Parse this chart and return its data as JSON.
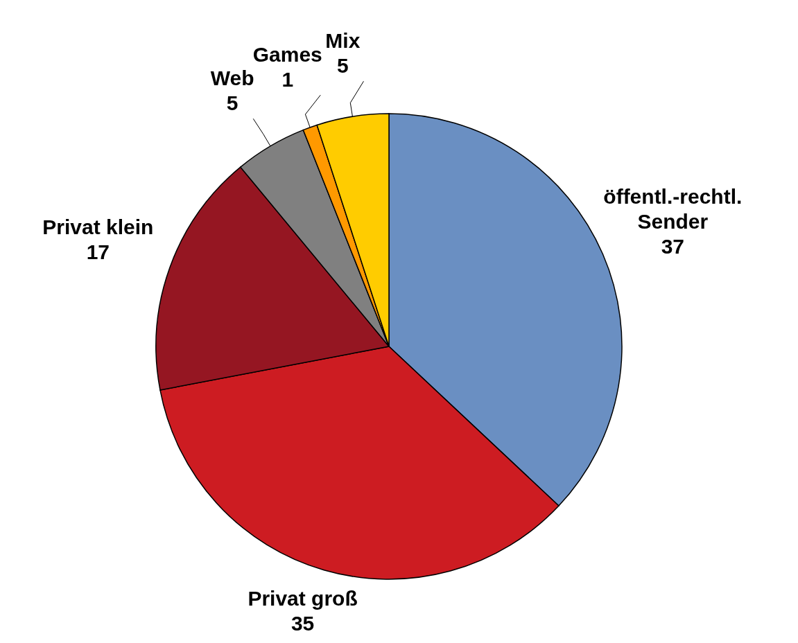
{
  "chart_data": {
    "type": "pie",
    "categories": [
      "öffentl.-rechtl. Sender",
      "Privat groß",
      "Privat klein",
      "Web",
      "Games",
      "Mix"
    ],
    "values": [
      37,
      35,
      17,
      5,
      1,
      5
    ],
    "colors": [
      "#6a8fc2",
      "#cd1c22",
      "#951622",
      "#808080",
      "#ff9900",
      "#ffcc00"
    ],
    "data_labels": true
  }
}
